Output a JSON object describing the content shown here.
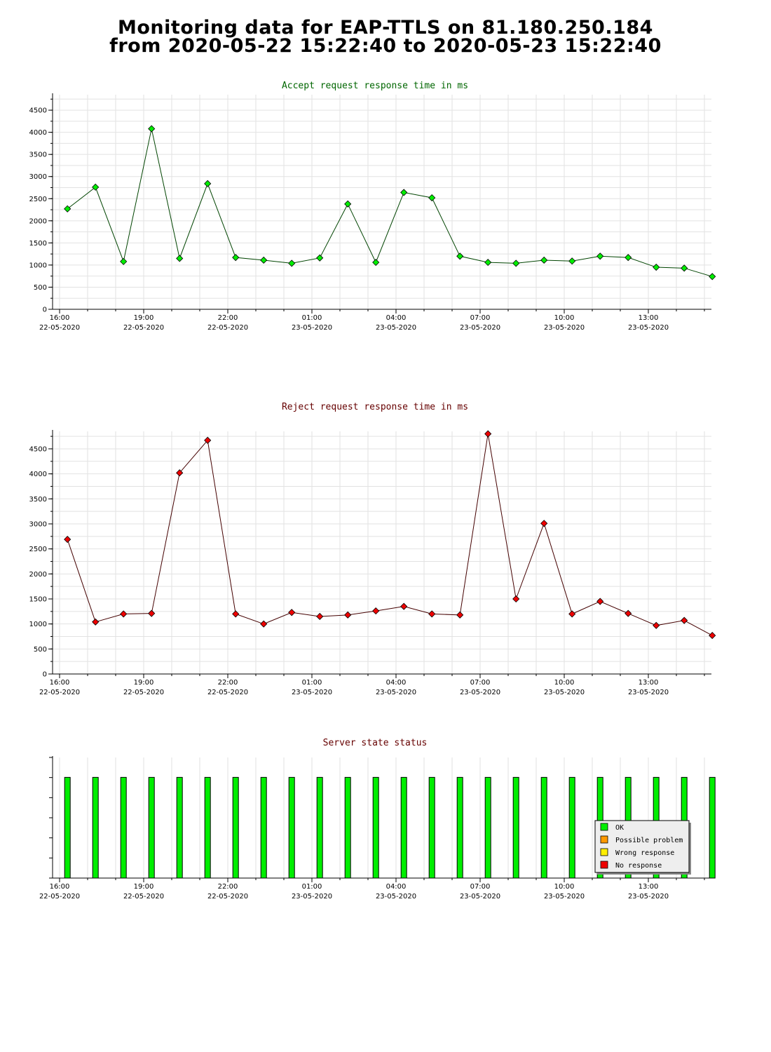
{
  "page": {
    "title_line1": "Monitoring data for EAP-TTLS on 81.180.250.184",
    "title_line2": "from 2020-05-22 15:22:40 to 2020-05-23 15:22:40"
  },
  "x_axis": {
    "ticks": [
      {
        "time": "16:00",
        "date": "22-05-2020",
        "h": 16
      },
      {
        "time": "19:00",
        "date": "22-05-2020",
        "h": 19
      },
      {
        "time": "22:00",
        "date": "22-05-2020",
        "h": 22
      },
      {
        "time": "01:00",
        "date": "23-05-2020",
        "h": 25
      },
      {
        "time": "04:00",
        "date": "23-05-2020",
        "h": 28
      },
      {
        "time": "07:00",
        "date": "23-05-2020",
        "h": 31
      },
      {
        "time": "10:00",
        "date": "23-05-2020",
        "h": 34
      },
      {
        "time": "13:00",
        "date": "23-05-2020",
        "h": 37
      }
    ],
    "range_hours": [
      15.75,
      39.25
    ]
  },
  "chart_data": [
    {
      "type": "line",
      "title": "Accept request response time in ms",
      "title_color": "#006600",
      "line_color": "#004400",
      "marker_color": "#00ee00",
      "ylim": [
        0,
        4850
      ],
      "yticks": [
        0,
        500,
        1000,
        1500,
        2000,
        2500,
        3000,
        3500,
        4000,
        4500
      ],
      "x": [
        16.0,
        17.0,
        18.0,
        19.0,
        20.0,
        21.0,
        22.0,
        23.0,
        24.0,
        25.0,
        26.0,
        27.0,
        28.0,
        29.0,
        30.0,
        31.0,
        32.0,
        33.0,
        34.0,
        35.0,
        36.0,
        37.0,
        38.0,
        39.0
      ],
      "values": [
        2270,
        2760,
        1080,
        4080,
        1150,
        2840,
        1170,
        1110,
        1040,
        1160,
        2380,
        1060,
        2640,
        2520,
        1200,
        1060,
        1040,
        1110,
        1090,
        1200,
        1170,
        950,
        930,
        740
      ]
    },
    {
      "type": "line",
      "title": "Reject request response time in ms",
      "title_color": "#660000",
      "line_color": "#440000",
      "marker_color": "#ee0000",
      "ylim": [
        0,
        4850
      ],
      "yticks": [
        0,
        500,
        1000,
        1500,
        2000,
        2500,
        3000,
        3500,
        4000,
        4500
      ],
      "x": [
        16.0,
        17.0,
        18.0,
        19.0,
        20.0,
        21.0,
        22.0,
        23.0,
        24.0,
        25.0,
        26.0,
        27.0,
        28.0,
        29.0,
        30.0,
        31.0,
        32.0,
        33.0,
        34.0,
        35.0,
        36.0,
        37.0,
        38.0,
        39.0
      ],
      "values": [
        2690,
        1040,
        1200,
        1210,
        4020,
        4670,
        1200,
        1000,
        1230,
        1150,
        1180,
        1260,
        1350,
        1200,
        1180,
        4800,
        1500,
        3010,
        1200,
        1450,
        1210,
        970,
        1070,
        770
      ]
    },
    {
      "type": "bar",
      "title": "Server state status",
      "title_color": "#660000",
      "bar_color": "#00ee00",
      "x": [
        16.0,
        17.0,
        18.0,
        19.0,
        20.0,
        21.0,
        22.0,
        23.0,
        24.0,
        25.0,
        26.0,
        27.0,
        28.0,
        29.0,
        30.0,
        31.0,
        32.0,
        33.0,
        34.0,
        35.0,
        36.0,
        37.0,
        38.0,
        39.0
      ],
      "values": [
        1,
        1,
        1,
        1,
        1,
        1,
        1,
        1,
        1,
        1,
        1,
        1,
        1,
        1,
        1,
        1,
        1,
        1,
        1,
        1,
        1,
        1,
        1,
        1
      ],
      "legend": [
        {
          "label": "OK",
          "color": "#00ee00"
        },
        {
          "label": "Possible problem",
          "color": "#ff9900"
        },
        {
          "label": "Wrong response",
          "color": "#ffee00"
        },
        {
          "label": "No response",
          "color": "#ee0000"
        }
      ]
    }
  ]
}
